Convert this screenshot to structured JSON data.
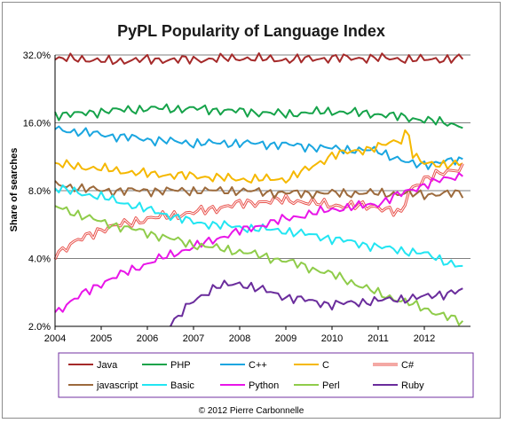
{
  "chart_data": {
    "type": "line",
    "title": "PyPL Popularity of Language Index",
    "xlabel": "",
    "ylabel": "Share of searches",
    "yscale": "log2",
    "ylim": [
      2.0,
      32.0
    ],
    "xlim": [
      2004.0,
      2013.0
    ],
    "yticks": [
      {
        "value": 2.0,
        "label": "2.0%"
      },
      {
        "value": 4.0,
        "label": "4.0%"
      },
      {
        "value": 8.0,
        "label": "8.0%"
      },
      {
        "value": 16.0,
        "label": "16.0%"
      },
      {
        "value": 32.0,
        "label": "32.0%"
      }
    ],
    "xticks": [
      "2004",
      "2005",
      "2006",
      "2007",
      "2008",
      "2009",
      "2010",
      "2011",
      "2012"
    ],
    "grid": "horizontal",
    "legend_position": "bottom",
    "footer": "© 2012 Pierre Carbonnelle",
    "series": [
      {
        "name": "Java",
        "color": "#a52a2a",
        "double": false,
        "points": [
          [
            2004.0,
            30.5
          ],
          [
            2004.5,
            31.0
          ],
          [
            2005.0,
            30.0
          ],
          [
            2006.0,
            30.5
          ],
          [
            2007.0,
            30.5
          ],
          [
            2008.0,
            31.0
          ],
          [
            2009.0,
            30.5
          ],
          [
            2010.0,
            31.0
          ],
          [
            2011.0,
            31.0
          ],
          [
            2012.0,
            30.5
          ],
          [
            2012.9,
            31.0
          ]
        ]
      },
      {
        "name": "PHP",
        "color": "#16a34a",
        "double": false,
        "points": [
          [
            2004.0,
            17.5
          ],
          [
            2004.5,
            17.5
          ],
          [
            2005.0,
            18.0
          ],
          [
            2006.0,
            18.5
          ],
          [
            2007.0,
            18.5
          ],
          [
            2008.0,
            18.0
          ],
          [
            2009.0,
            17.5
          ],
          [
            2010.0,
            18.0
          ],
          [
            2011.0,
            17.5
          ],
          [
            2011.5,
            17.0
          ],
          [
            2012.0,
            16.5
          ],
          [
            2012.9,
            15.5
          ]
        ]
      },
      {
        "name": "C++",
        "color": "#1aa6e0",
        "double": false,
        "points": [
          [
            2004.0,
            15.0
          ],
          [
            2005.0,
            14.2
          ],
          [
            2006.0,
            13.5
          ],
          [
            2007.0,
            13.0
          ],
          [
            2008.0,
            13.0
          ],
          [
            2009.0,
            12.8
          ],
          [
            2010.0,
            12.3
          ],
          [
            2011.0,
            12.0
          ],
          [
            2011.7,
            10.5
          ],
          [
            2012.0,
            10.5
          ],
          [
            2012.9,
            11.0
          ]
        ]
      },
      {
        "name": "C",
        "color": "#f5b800",
        "double": false,
        "points": [
          [
            2004.0,
            10.5
          ],
          [
            2005.0,
            10.0
          ],
          [
            2006.0,
            9.5
          ],
          [
            2007.0,
            9.3
          ],
          [
            2008.0,
            9.0
          ],
          [
            2009.0,
            9.0
          ],
          [
            2009.5,
            10.0
          ],
          [
            2010.0,
            11.5
          ],
          [
            2011.0,
            12.5
          ],
          [
            2011.5,
            13.5
          ],
          [
            2011.65,
            15.0
          ],
          [
            2011.75,
            11.5
          ],
          [
            2012.0,
            10.5
          ],
          [
            2012.9,
            10.5
          ]
        ]
      },
      {
        "name": "C#",
        "color": "#e8504a",
        "double": true,
        "points": [
          [
            2004.0,
            4.2
          ],
          [
            2004.5,
            4.8
          ],
          [
            2005.0,
            5.4
          ],
          [
            2005.5,
            5.7
          ],
          [
            2006.0,
            6.0
          ],
          [
            2007.0,
            6.4
          ],
          [
            2008.0,
            7.0
          ],
          [
            2009.0,
            7.3
          ],
          [
            2010.0,
            6.9
          ],
          [
            2011.0,
            6.8
          ],
          [
            2011.5,
            6.3
          ],
          [
            2011.7,
            8.2
          ],
          [
            2012.0,
            9.0
          ],
          [
            2012.9,
            10.3
          ]
        ]
      },
      {
        "name": "javascript",
        "color": "#9c6a3c",
        "double": false,
        "points": [
          [
            2004.0,
            8.5
          ],
          [
            2005.0,
            8.0
          ],
          [
            2006.0,
            8.0
          ],
          [
            2007.0,
            8.0
          ],
          [
            2008.0,
            8.0
          ],
          [
            2009.0,
            7.8
          ],
          [
            2010.0,
            7.8
          ],
          [
            2011.0,
            7.8
          ],
          [
            2012.0,
            7.7
          ],
          [
            2012.9,
            7.8
          ]
        ]
      },
      {
        "name": "Basic",
        "color": "#22e5f2",
        "double": false,
        "points": [
          [
            2004.0,
            8.2
          ],
          [
            2005.0,
            7.5
          ],
          [
            2006.0,
            6.6
          ],
          [
            2007.0,
            5.8
          ],
          [
            2008.0,
            5.5
          ],
          [
            2009.0,
            5.3
          ],
          [
            2010.0,
            4.9
          ],
          [
            2011.0,
            4.5
          ],
          [
            2012.0,
            4.2
          ],
          [
            2012.9,
            3.6
          ]
        ]
      },
      {
        "name": "Python",
        "color": "#e815e8",
        "double": false,
        "points": [
          [
            2004.0,
            2.3
          ],
          [
            2004.5,
            2.7
          ],
          [
            2005.0,
            3.1
          ],
          [
            2006.0,
            3.8
          ],
          [
            2007.0,
            4.5
          ],
          [
            2008.0,
            5.3
          ],
          [
            2009.0,
            6.0
          ],
          [
            2010.0,
            6.6
          ],
          [
            2011.0,
            7.0
          ],
          [
            2012.0,
            8.5
          ],
          [
            2012.9,
            9.5
          ]
        ]
      },
      {
        "name": "Perl",
        "color": "#8fcc4a",
        "double": false,
        "points": [
          [
            2004.0,
            6.8
          ],
          [
            2004.5,
            6.3
          ],
          [
            2005.0,
            5.8
          ],
          [
            2006.0,
            5.2
          ],
          [
            2007.0,
            4.6
          ],
          [
            2008.0,
            4.3
          ],
          [
            2009.0,
            3.9
          ],
          [
            2010.0,
            3.4
          ],
          [
            2011.0,
            2.8
          ],
          [
            2012.0,
            2.4
          ],
          [
            2012.9,
            2.05
          ]
        ]
      },
      {
        "name": "Ruby",
        "color": "#6a2c9c",
        "double": false,
        "points": [
          [
            2006.5,
            2.0
          ],
          [
            2007.0,
            2.6
          ],
          [
            2007.5,
            3.0
          ],
          [
            2008.0,
            3.1
          ],
          [
            2008.5,
            2.9
          ],
          [
            2009.0,
            2.7
          ],
          [
            2010.0,
            2.5
          ],
          [
            2011.0,
            2.6
          ],
          [
            2012.0,
            2.7
          ],
          [
            2012.9,
            2.9
          ]
        ]
      }
    ]
  }
}
